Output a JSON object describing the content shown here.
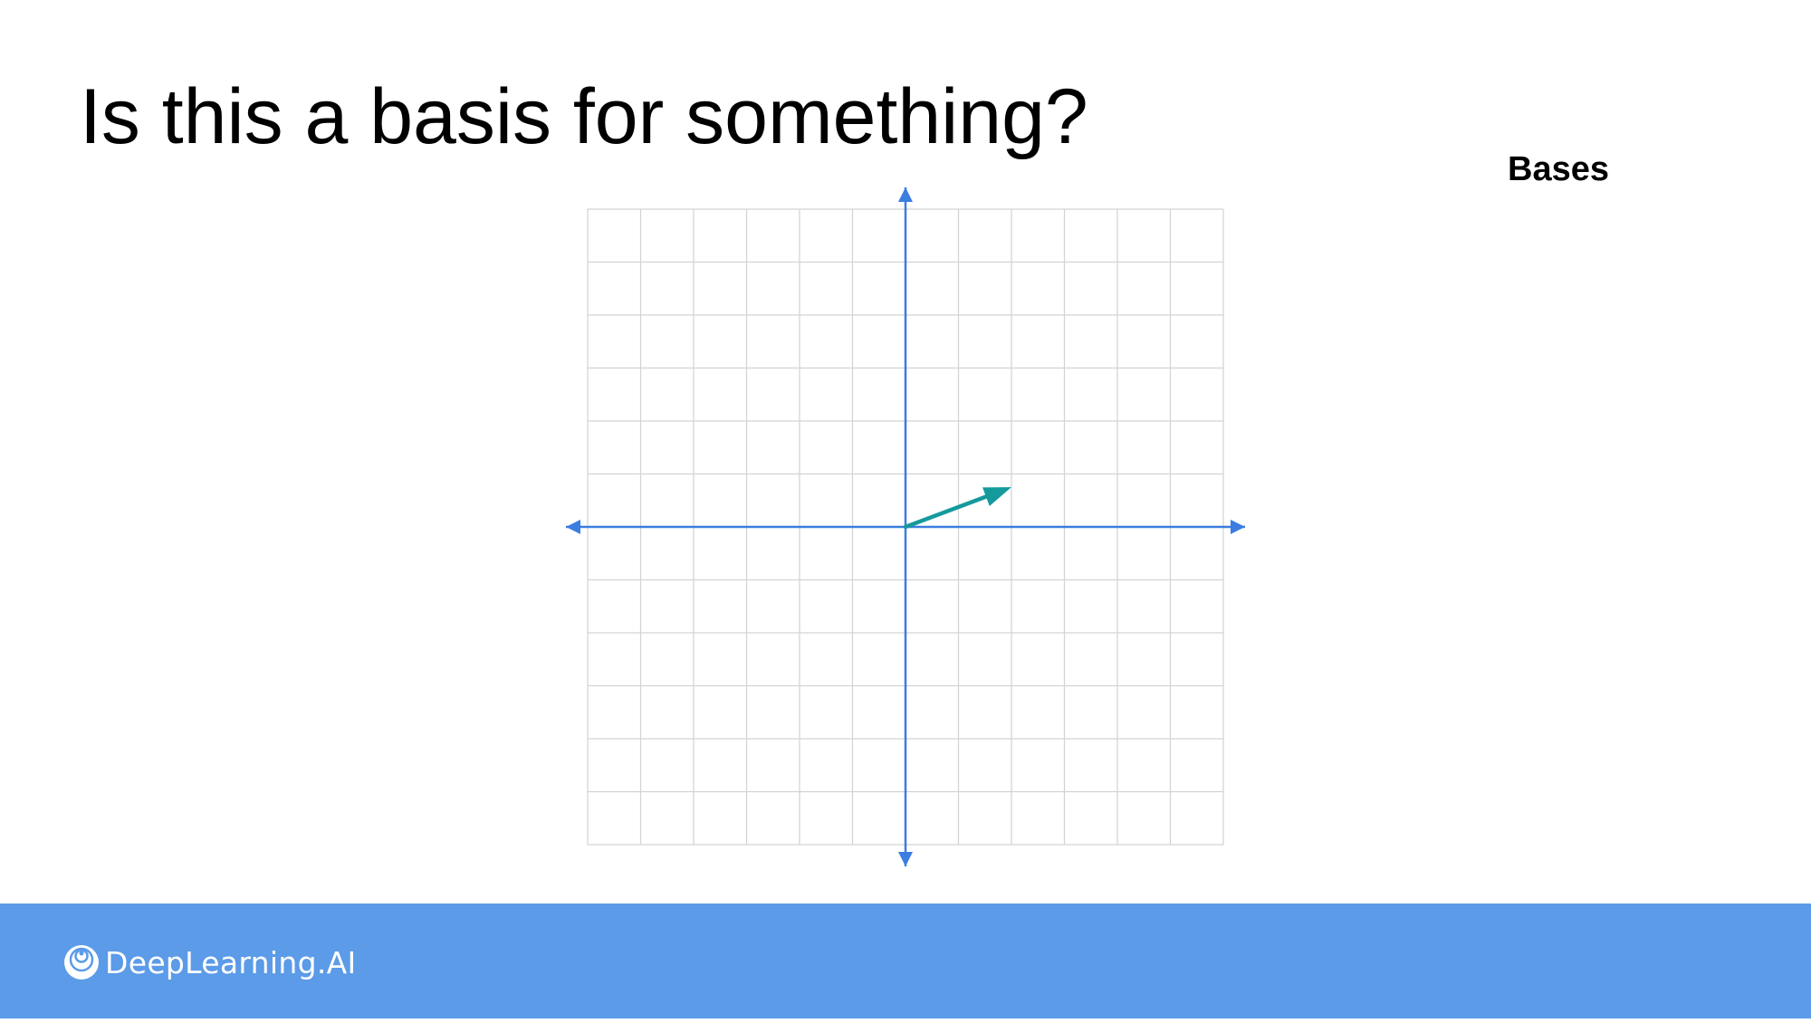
{
  "slide": {
    "title": "Is this a basis for something?",
    "section": "Bases"
  },
  "diagram": {
    "grid": {
      "x_range": [
        -6,
        6
      ],
      "y_range": [
        -6,
        6
      ],
      "step": 1,
      "grid_color": "#d3d3d3"
    },
    "axes": {
      "color": "#3b7de0",
      "arrows": true
    },
    "vectors": [
      {
        "from": [
          0,
          0
        ],
        "to": [
          2,
          0.75
        ],
        "color": "#159a9c"
      }
    ]
  },
  "footer": {
    "color": "#5b9be8",
    "brand": "DeepLearning.AI",
    "logo_icon": "deeplearning-ai-logo-icon"
  }
}
